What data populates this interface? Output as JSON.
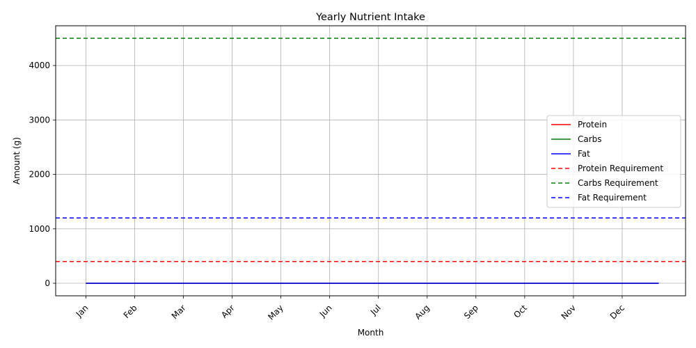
{
  "chart_data": {
    "type": "line",
    "title": "Yearly Nutrient Intake",
    "xlabel": "Month",
    "ylabel": "Amount (g)",
    "categories": [
      "Jan",
      "Feb",
      "Mar",
      "Apr",
      "May",
      "Jun",
      "Jul",
      "Aug",
      "Sep",
      "Oct",
      "Nov",
      "Dec"
    ],
    "y_ticks": [
      0,
      1000,
      2000,
      3000,
      4000
    ],
    "ylim": [
      -230,
      4730
    ],
    "grid": true,
    "legend_position": "center-right",
    "series": [
      {
        "name": "Protein",
        "color": "#ff0000",
        "style": "solid",
        "x": [
          0,
          0.5,
          1,
          1.5,
          2,
          2.5,
          3,
          3.5,
          4,
          4.5,
          5,
          5.5,
          6,
          6.5,
          7,
          7.5,
          8,
          8.5,
          9,
          9.5,
          10,
          10.5,
          11,
          11.5,
          11.75
        ],
        "values": [
          0,
          0,
          0,
          0,
          0,
          0,
          0,
          0,
          0,
          0,
          0,
          0,
          0,
          0,
          0,
          0,
          0,
          0,
          0,
          0,
          0,
          0,
          0,
          0,
          0
        ]
      },
      {
        "name": "Carbs",
        "color": "#008000",
        "style": "solid",
        "x": [
          0,
          0.5,
          1,
          1.5,
          2,
          2.5,
          3,
          3.5,
          4,
          4.5,
          5,
          5.5,
          6,
          6.5,
          7,
          7.5,
          8,
          8.5,
          9,
          9.5,
          10,
          10.5,
          11,
          11.5,
          11.75
        ],
        "values": [
          0,
          0,
          0,
          0,
          0,
          0,
          0,
          0,
          0,
          0,
          0,
          0,
          0,
          0,
          0,
          0,
          0,
          0,
          0,
          0,
          0,
          0,
          0,
          0,
          0
        ]
      },
      {
        "name": "Fat",
        "color": "#0000ff",
        "style": "solid",
        "x": [
          0,
          0.5,
          1,
          1.5,
          2,
          2.5,
          3,
          3.5,
          4,
          4.5,
          5,
          5.5,
          6,
          6.5,
          7,
          7.5,
          8,
          8.5,
          9,
          9.5,
          10,
          10.5,
          11,
          11.5,
          11.75
        ],
        "values": [
          0,
          0,
          0,
          0,
          0,
          0,
          0,
          0,
          0,
          0,
          0,
          0,
          0,
          0,
          0,
          0,
          0,
          0,
          0,
          0,
          0,
          0,
          0,
          0,
          0
        ]
      },
      {
        "name": "Protein Requirement",
        "color": "#ff0000",
        "style": "dashed",
        "horizontal": true,
        "value": 400
      },
      {
        "name": "Carbs Requirement",
        "color": "#008000",
        "style": "dashed",
        "horizontal": true,
        "value": 4500
      },
      {
        "name": "Fat Requirement",
        "color": "#0000ff",
        "style": "dashed",
        "horizontal": true,
        "value": 1200
      }
    ]
  }
}
